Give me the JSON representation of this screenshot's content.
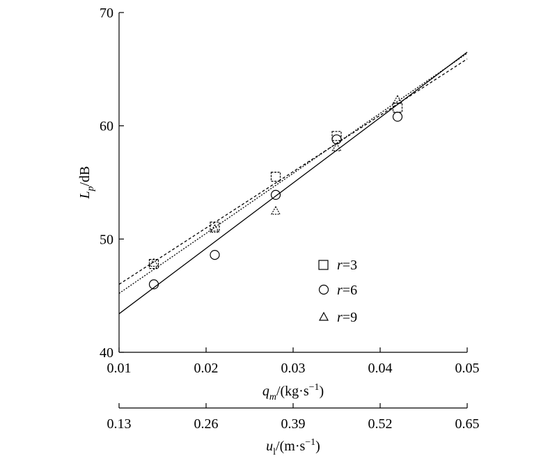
{
  "chart_data": {
    "type": "scatter",
    "xlabel_main": "q",
    "xlabel_main_sub": "m",
    "xlabel_main_unit": "/(kg·s",
    "xlabel_main_exp": "−1",
    "xlabel_main_close": ")",
    "xlabel_secondary": "u",
    "xlabel_secondary_sub": "l",
    "xlabel_secondary_unit": "/(m·s",
    "xlabel_secondary_exp": "−1",
    "xlabel_secondary_close": ")",
    "ylabel": "L",
    "ylabel_sub": "p",
    "ylabel_unit": "/dB",
    "xlim": [
      0.01,
      0.05
    ],
    "ylim": [
      40,
      70
    ],
    "x_ticks": [
      "0.01",
      "0.02",
      "0.03",
      "0.04",
      "0.05"
    ],
    "x_tick_values": [
      0.01,
      0.02,
      0.03,
      0.04,
      0.05
    ],
    "x2_ticks": [
      "0.13",
      "0.26",
      "0.39",
      "0.52",
      "0.65"
    ],
    "y_ticks": [
      "40",
      "50",
      "60",
      "70"
    ],
    "y_tick_values": [
      40,
      50,
      60,
      70
    ],
    "legend_position": "right-middle",
    "grid": false,
    "series": [
      {
        "name": "r=3",
        "legend_italic": "r",
        "legend_rest": "=3",
        "marker": "square",
        "line_style": "dashed",
        "x": [
          0.014,
          0.021,
          0.028,
          0.035,
          0.042
        ],
        "y": [
          47.8,
          51.1,
          55.5,
          59.1,
          61.6
        ],
        "fit": [
          [
            0.01,
            46.0
          ],
          [
            0.05,
            65.9
          ]
        ]
      },
      {
        "name": "r=6",
        "legend_italic": "r",
        "legend_rest": "=6",
        "marker": "circle",
        "line_style": "solid",
        "x": [
          0.014,
          0.021,
          0.028,
          0.035,
          0.042
        ],
        "y": [
          46.0,
          48.6,
          53.9,
          58.8,
          60.8
        ],
        "fit": [
          [
            0.01,
            43.4
          ],
          [
            0.05,
            66.5
          ]
        ]
      },
      {
        "name": "r=9",
        "legend_italic": "r",
        "legend_rest": "=9",
        "marker": "triangle",
        "line_style": "dotted",
        "x": [
          0.014,
          0.021,
          0.028,
          0.035,
          0.042
        ],
        "y": [
          47.9,
          50.9,
          52.5,
          58.1,
          62.3
        ],
        "fit": [
          [
            0.01,
            45.2
          ],
          [
            0.05,
            66.4
          ]
        ]
      }
    ]
  }
}
